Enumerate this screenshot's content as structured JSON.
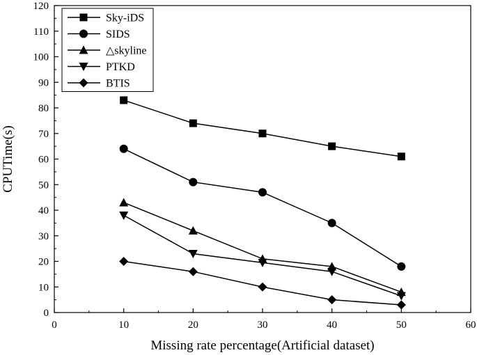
{
  "chart_data": {
    "type": "line",
    "title": "",
    "xlabel": "Missing rate percentage(Artificial dataset)",
    "ylabel": "CPUTime(s)",
    "xlim": [
      0,
      60
    ],
    "ylim": [
      0,
      120
    ],
    "xticks": [
      0,
      10,
      20,
      30,
      40,
      50,
      60
    ],
    "yticks": [
      0,
      10,
      20,
      30,
      40,
      50,
      60,
      70,
      80,
      90,
      100,
      110,
      120
    ],
    "grid": false,
    "legend_position": "top-left",
    "x": [
      10,
      20,
      30,
      40,
      50
    ],
    "series": [
      {
        "name": "Sky-iDS",
        "marker": "square",
        "values": [
          83,
          74,
          70,
          65,
          61
        ]
      },
      {
        "name": "SIDS",
        "marker": "circle",
        "values": [
          64,
          51,
          47,
          35,
          18
        ]
      },
      {
        "name": "△skyline",
        "marker": "triangle-up",
        "values": [
          43,
          32,
          21,
          18,
          8
        ]
      },
      {
        "name": "PTKD",
        "marker": "triangle-down",
        "values": [
          38,
          23,
          19.5,
          16,
          6.5
        ]
      },
      {
        "name": "BTIS",
        "marker": "diamond",
        "values": [
          20,
          16,
          10,
          5,
          3
        ]
      }
    ],
    "line_color": "#000000"
  }
}
